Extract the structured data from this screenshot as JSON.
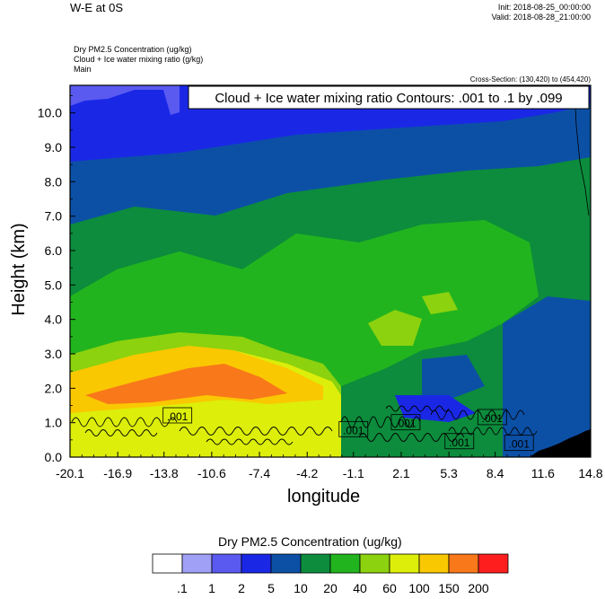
{
  "figure": {
    "title": "W-E at 0S",
    "init": "Init: 2018-08-25_00:00:00",
    "valid": "Valid: 2018-08-28_21:00:00",
    "fields": [
      "Dry PM2.5 Concentration   (ug/kg)",
      "Cloud + Ice water mixing ratio   (g/kg)",
      "Main"
    ],
    "cross_section": "Cross-Section: (130,420) to (454,420)",
    "contour_label": "Cloud + Ice water mixing ratio Contours: .001 to .1 by .099"
  },
  "chart_data": {
    "type": "heatmap",
    "title": "W-E at 0S",
    "xlabel": "longitude",
    "ylabel": "Height (km)",
    "xlim": [
      -20.1,
      14.8
    ],
    "ylim": [
      0.0,
      10.8
    ],
    "grid": false,
    "x_ticks": [
      "-20.1",
      "-16.9",
      "-13.8",
      "-10.6",
      "-7.4",
      "-4.2",
      "-1.1",
      "2.1",
      "5.3",
      "8.4",
      "11.6",
      "14.8"
    ],
    "y_ticks": [
      "0.0",
      "1.0",
      "2.0",
      "3.0",
      "4.0",
      "5.0",
      "6.0",
      "7.0",
      "8.0",
      "9.0",
      "10.0"
    ],
    "colorbar": {
      "title": "Dry PM2.5 Concentration  (ug/kg)",
      "levels": [
        ".1",
        "1",
        "2",
        "5",
        "10",
        "20",
        "40",
        "60",
        "100",
        "150",
        "200"
      ],
      "colors": [
        "#ffffff",
        "#a0a0f6",
        "#5a5af0",
        "#1a28e6",
        "#0c50a6",
        "#0c8c3c",
        "#22b41e",
        "#8cd20e",
        "#dcee0a",
        "#fac800",
        "#f8781a",
        "#ff1e1e"
      ]
    },
    "contour_labels": [
      {
        "text": ".001",
        "x": -12.9,
        "y": 1.2
      },
      {
        "text": ".001",
        "x": -1.1,
        "y": 0.8
      },
      {
        "text": ".001",
        "x": 2.4,
        "y": 1.0
      },
      {
        "text": ".001",
        "x": 6.0,
        "y": 0.45
      },
      {
        "text": ".001",
        "x": 8.2,
        "y": 1.15
      },
      {
        "text": ".001",
        "x": 10.0,
        "y": 0.4
      }
    ]
  }
}
